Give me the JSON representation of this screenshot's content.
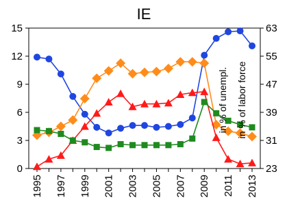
{
  "chart_data": {
    "type": "line",
    "title": "IE",
    "x": [
      1995,
      1996,
      1997,
      1998,
      1999,
      2000,
      2001,
      2002,
      2003,
      2004,
      2005,
      2006,
      2007,
      2008,
      2009,
      2010,
      2011,
      2012,
      2013
    ],
    "x_tick_labels": [
      "1995",
      "1997",
      "1999",
      "2001",
      "2003",
      "2005",
      "2007",
      "2009",
      "2011",
      "2013"
    ],
    "left_axis": {
      "range": [
        0,
        15
      ],
      "ticks": [
        "0",
        "3",
        "6",
        "9",
        "12",
        "15"
      ]
    },
    "right_axis": {
      "range": [
        23,
        63
      ],
      "ticks": [
        "23",
        "31",
        "39",
        "47",
        "55",
        "63"
      ],
      "labels": [
        "in % of unempl.",
        "in % of labor force"
      ]
    },
    "series": [
      {
        "marker": "circle",
        "color": "#1f46e0",
        "axis": "left",
        "values": [
          11.9,
          11.7,
          10.1,
          7.7,
          5.8,
          4.4,
          3.8,
          4.3,
          4.6,
          4.6,
          4.4,
          4.5,
          4.7,
          5.4,
          12.1,
          13.9,
          14.6,
          14.7,
          13.1
        ]
      },
      {
        "marker": "diamond",
        "color": "#ff8c1a",
        "axis": "right",
        "values": [
          32.5,
          33.3,
          35.0,
          36.8,
          42.9,
          48.7,
          50.8,
          53.0,
          50.0,
          50.4,
          50.6,
          51.5,
          53.4,
          53.4,
          53.0,
          35.5,
          33.6,
          33.1,
          32.1
        ]
      },
      {
        "marker": "triangle",
        "color": "#ff1a1a",
        "axis": "left",
        "values": [
          0.2,
          1.0,
          1.4,
          3.0,
          4.5,
          5.9,
          7.1,
          8.0,
          6.6,
          6.9,
          6.9,
          7.0,
          7.9,
          8.1,
          8.2,
          3.3,
          1.0,
          0.5,
          0.6
        ]
      },
      {
        "marker": "square",
        "color": "#1f8a1f",
        "axis": "left",
        "values": [
          4.1,
          4.0,
          3.7,
          3.0,
          2.8,
          2.3,
          2.2,
          2.6,
          2.5,
          2.5,
          2.5,
          2.5,
          2.6,
          3.2,
          7.1,
          5.9,
          5.1,
          4.7,
          4.4
        ]
      }
    ]
  }
}
